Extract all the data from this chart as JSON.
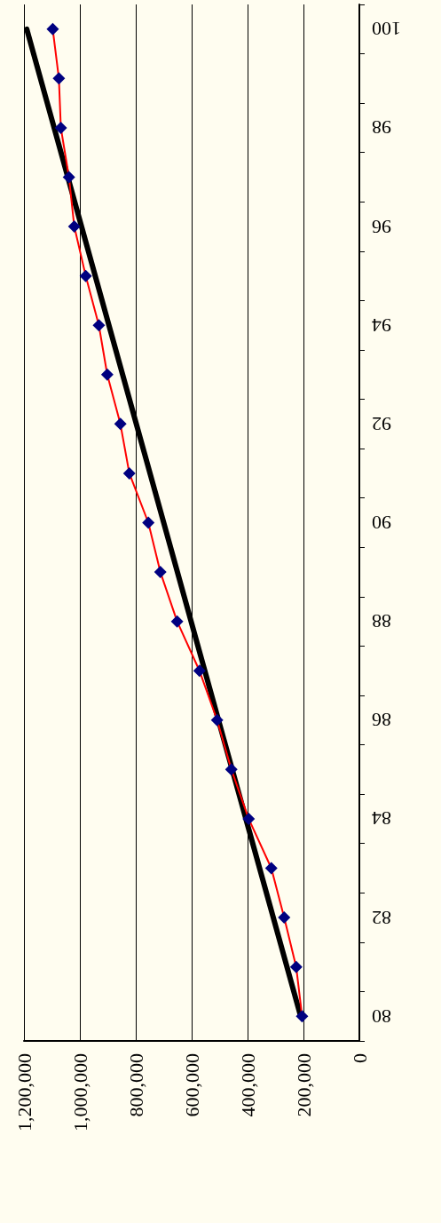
{
  "chart_data": {
    "type": "line",
    "orientation": "horizontal",
    "categories": [
      "100",
      null,
      "98",
      null,
      "96",
      null,
      "94",
      null,
      "92",
      null,
      "90",
      null,
      "88",
      null,
      "86",
      null,
      "84",
      null,
      "82",
      null,
      "80"
    ],
    "xlim": [
      1200000,
      0
    ],
    "xticks": [
      0,
      {
        "value": 200000,
        "label": "200,000"
      },
      {
        "value": 400000,
        "label": "400,000"
      },
      {
        "value": 600000,
        "label": "600,000"
      },
      {
        "value": 800000,
        "label": "800,000"
      },
      {
        "value": 1000000,
        "label": "1,000,000"
      },
      {
        "value": 1200000,
        "label": "1,200,000"
      }
    ],
    "grid": "x",
    "marker": "diamond",
    "line_style": "solid",
    "series": [
      {
        "color": "#ff0000",
        "colors": [
          "#000080",
          "#000080",
          "#000080",
          "#000080",
          "#000080",
          "#000080",
          "#000080",
          "#000080",
          "#000080",
          "#000080",
          "#000080",
          "#000080",
          "#000080",
          "#000080",
          "#000080",
          "#000080",
          "#000080",
          "#000080",
          "#000080",
          "#000080",
          "#000080"
        ],
        "values": [
          1097000,
          1075000,
          1068000,
          1039000,
          1020000,
          979000,
          932000,
          902000,
          855000,
          823000,
          755000,
          712000,
          652000,
          572000,
          509000,
          458000,
          396000,
          315000,
          269000,
          226000,
          205000
        ]
      },
      {
        "type": "line",
        "x": [
          "80",
          "100"
        ],
        "values": [
          210000,
          1190000
        ],
        "color": "#000000",
        "marker": "none"
      }
    ]
  }
}
